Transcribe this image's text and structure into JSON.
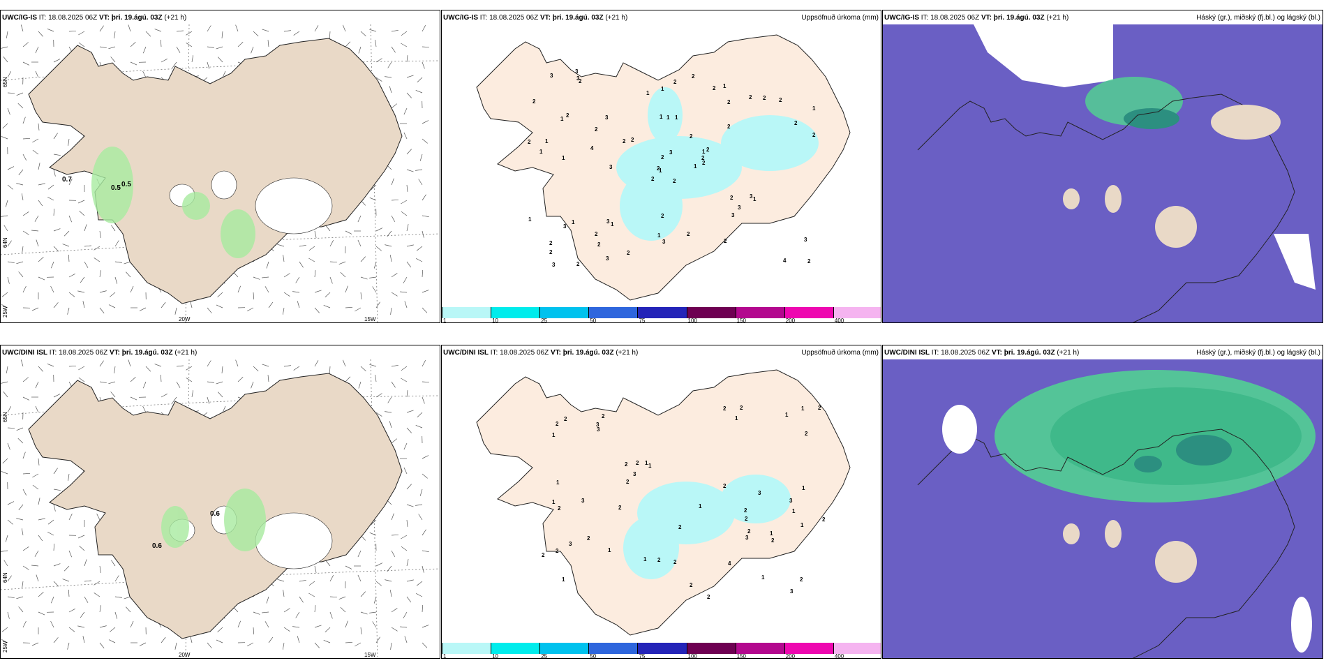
{
  "rows": [
    {
      "model": "UWC/IG-IS",
      "it_label": "IT:",
      "it_value": "18.08.2025 06Z",
      "vt_label": "VT:",
      "vt_value": "þri. 19.ágú. 03Z",
      "lead": "(+21 h)",
      "wind_labels": [
        "0.7",
        "0.5",
        "0.5"
      ]
    },
    {
      "model": "UWC/DINI ISL",
      "it_label": "IT:",
      "it_value": "18.08.2025 06Z",
      "vt_label": "VT:",
      "vt_value": "þri. 19.ágú. 03Z",
      "lead": "(+21 h)",
      "wind_labels": [
        "0.6",
        "0.6"
      ]
    }
  ],
  "precip_title": "Uppsöfnuð úrkoma (mm)",
  "cloud_title": "Háský (gr.), miðský (fj.bl.) og lágský (bl.)",
  "colorbar": {
    "ticks": [
      "1",
      "10",
      "25",
      "50",
      "75",
      "100",
      "150",
      "200",
      "400"
    ],
    "colors": [
      "#b9f7f7",
      "#00ecec",
      "#00c2ee",
      "#2e66dd",
      "#2424b8",
      "#6e0052",
      "#b3088e",
      "#ee08b0",
      "#f5b4f0"
    ]
  },
  "axes": {
    "lat_top": "65N",
    "lat_mid": "64N",
    "lon_left": "25W",
    "lon_mid": "20W",
    "lon_right": "15W"
  },
  "precip_digits_top": [
    "2",
    "1",
    "1",
    "2",
    "1",
    "1",
    "1",
    "1",
    "2",
    "1",
    "2",
    "2",
    "1",
    "1",
    "2",
    "2",
    "2",
    "1",
    "2",
    "1",
    "2",
    "2",
    "2",
    "1",
    "2",
    "1",
    "2",
    "1",
    "1",
    "2",
    "2",
    "2",
    "1",
    "2",
    "3",
    "2",
    "3",
    "4",
    "3",
    "3",
    "2",
    "2",
    "4",
    "3",
    "3",
    "2",
    "2",
    "3",
    "3",
    "2",
    "3",
    "2",
    "2",
    "3",
    "2",
    "2",
    "3",
    "3",
    "2",
    "2",
    "2",
    "3",
    "1",
    "2",
    "2",
    "3",
    "2",
    "1",
    "3",
    "1",
    "2",
    "2"
  ],
  "precip_digits_bottom": [
    "2",
    "1",
    "1",
    "2",
    "1",
    "1",
    "2",
    "1",
    "2",
    "2",
    "1",
    "1",
    "2",
    "2",
    "1",
    "1",
    "2",
    "1",
    "1",
    "2",
    "2",
    "1",
    "2",
    "1",
    "2",
    "3",
    "2",
    "2",
    "3",
    "3",
    "2",
    "4",
    "3",
    "2",
    "3",
    "2",
    "3",
    "3",
    "2",
    "3",
    "2",
    "2",
    "3",
    "2",
    "1",
    "1",
    "2",
    "2",
    "2",
    "1",
    "2",
    "2",
    "1",
    "2"
  ],
  "colors": {
    "land": "#e9d9c7",
    "land_precip": "#fcecdf",
    "sea_precip": "#ffffff",
    "precip_cyan": "#b9f7f7",
    "green": "#a8eba0",
    "cloud_bg": "#6a5fc4",
    "cloud_dark": "#554cb8",
    "cloud_green": "#52cf93",
    "cloud_teal": "#2c8f80"
  }
}
